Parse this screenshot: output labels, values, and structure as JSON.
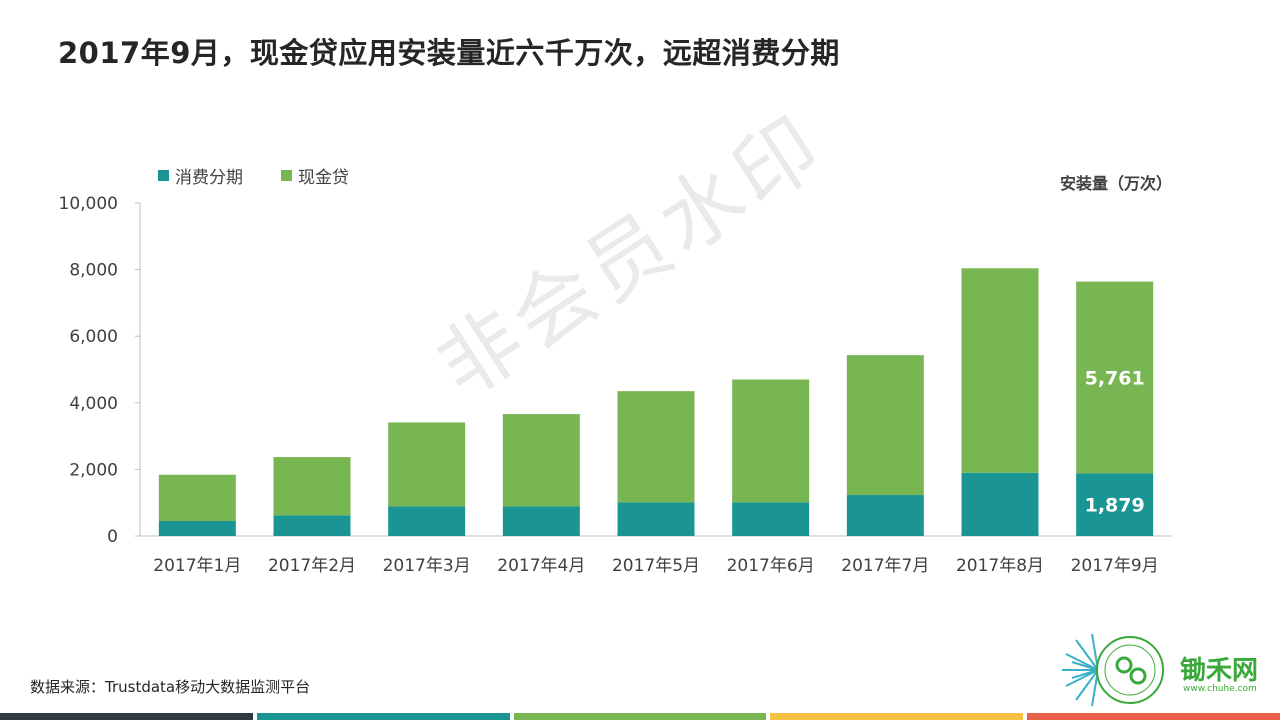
{
  "title": "2017年9月，现金贷应用安装量近六千万次，远超消费分期",
  "unit_label": "安装量（万次）",
  "source": "数据来源：Trustdata移动大数据监测平台",
  "watermark": "非会员水印",
  "logo": {
    "name": "锄禾网",
    "url": "www.chuhe.com"
  },
  "colors": {
    "series1": "#1b9593",
    "series2": "#78b553",
    "axis": "#bfbfbf",
    "footer": [
      "#2e3a43",
      "#1b9593",
      "#78b553",
      "#f7c244",
      "#e8604c"
    ]
  },
  "chart_data": {
    "type": "bar",
    "stacked": true,
    "categories": [
      "2017年1月",
      "2017年2月",
      "2017年3月",
      "2017年4月",
      "2017年5月",
      "2017年6月",
      "2017年7月",
      "2017年8月",
      "2017年9月"
    ],
    "series": [
      {
        "name": "消费分期",
        "values": [
          450,
          620,
          890,
          890,
          1010,
          1010,
          1230,
          1900,
          1879
        ]
      },
      {
        "name": "现金贷",
        "values": [
          1390,
          1750,
          2520,
          2770,
          3340,
          3690,
          4200,
          6140,
          5761
        ]
      }
    ],
    "data_labels": [
      {
        "series": 0,
        "index": 8,
        "text": "1,879"
      },
      {
        "series": 1,
        "index": 8,
        "text": "5,761"
      }
    ],
    "ylim": [
      0,
      10000
    ],
    "yticks": [
      "0",
      "2,000",
      "4,000",
      "6,000",
      "8,000",
      "10,000"
    ],
    "ytick_values": [
      0,
      2000,
      4000,
      6000,
      8000,
      10000
    ],
    "grid": false,
    "legend": "top-left"
  }
}
